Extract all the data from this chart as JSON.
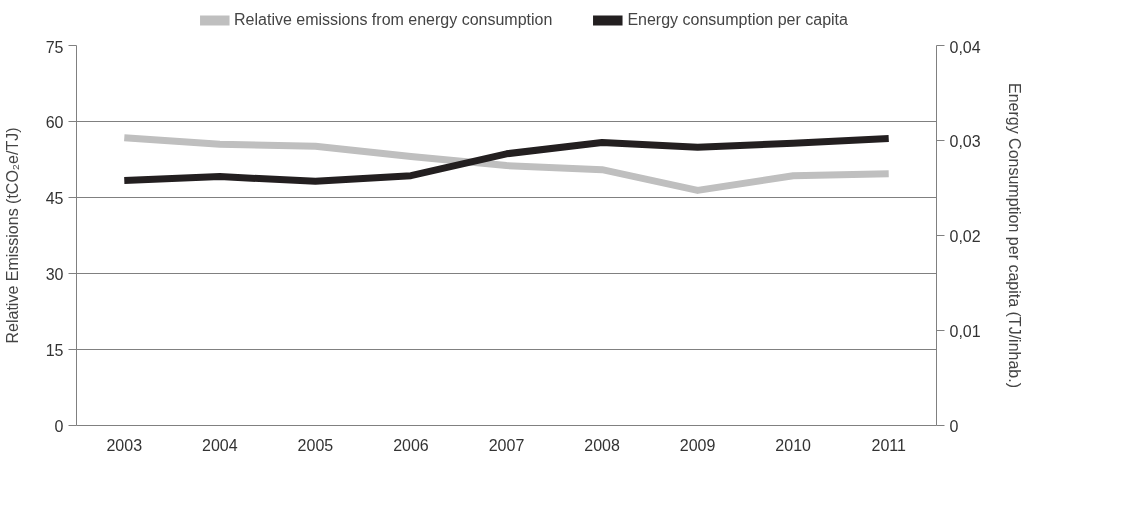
{
  "chart_data": {
    "type": "line",
    "categories": [
      "2003",
      "2004",
      "2005",
      "2006",
      "2007",
      "2008",
      "2009",
      "2010",
      "2011"
    ],
    "ylabel": "Relative Emissions (tCO₂e/TJ)",
    "y2label": "Energy Consumption per capita (TJ/inhab.)",
    "ylim": [
      0,
      75
    ],
    "yticks": [
      0,
      15,
      30,
      45,
      60,
      75
    ],
    "y2lim": [
      0,
      0.04
    ],
    "y2ticks": [
      {
        "value": 0,
        "label": "0"
      },
      {
        "value": 0.01,
        "label": "0,01"
      },
      {
        "value": 0.02,
        "label": "0,02"
      },
      {
        "value": 0.03,
        "label": "0,03"
      },
      {
        "value": 0.04,
        "label": "0,04"
      }
    ],
    "series": [
      {
        "name": "Relative emissions from energy consumption",
        "color": "#bfbfbf",
        "values": [
          56.8,
          55.5,
          55.1,
          53.1,
          51.3,
          50.5,
          46.4,
          49.3,
          49.7
        ]
      },
      {
        "name": "Energy consumption per capita",
        "color": "#231f20",
        "axis": "y2",
        "values": [
          0.0258,
          0.0262,
          0.0257,
          0.0263,
          0.0286,
          0.0298,
          0.0293,
          0.0297,
          0.0302
        ]
      }
    ],
    "grid": "y",
    "legend": "top",
    "marker": "none",
    "line_style": "solid"
  }
}
